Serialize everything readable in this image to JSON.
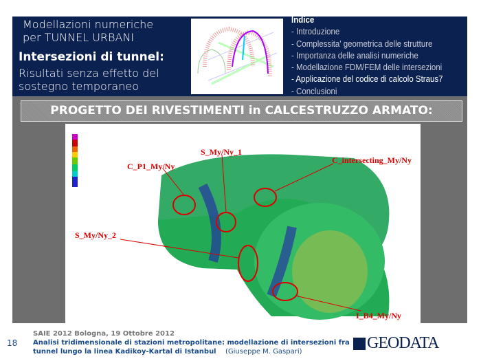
{
  "header": {
    "title_line1": "Modellazioni numeriche",
    "title_line2": "per TUNNEL URBANI",
    "subtitle": "Intersezioni di tunnel:",
    "desc_line1": "Risultati senza effetto del",
    "desc_line2": "sostegno temporaneo"
  },
  "index": {
    "heading": "Indice",
    "items": [
      "- Introduzione",
      "- Complessita' geometrica delle strutture",
      "- Importanza delle analisi numeriche",
      "- Modellazione FDM/FEM delle intersezioni",
      "- Applicazione del codice di calcolo Straus7",
      "- Conclusioni"
    ],
    "active_index": 4
  },
  "section_title": "PROGETTO DEI RIVESTIMENTI in CALCESTRUZZO ARMATO:",
  "figure": {
    "labels": [
      "S_My/Ny_1",
      "C_P1_My/Ny",
      "C_intersecting_My/Ny",
      "S_My/Ny_2",
      "I_B4_My/Ny"
    ]
  },
  "footer": {
    "page": "18",
    "event": "SAIE 2012 Bologna, 19 Ottobre 2012",
    "line1": "Analisi tridimensionale di stazioni metropolitane: modellazione di intersezioni fra",
    "line2": "tunnel lungo la linea Kadikoy-Kartal di Istanbul",
    "author": "(Giuseppe M. Gaspari)",
    "logo": "GEODATA"
  },
  "colors": {
    "band": "#0b2150",
    "gray": "#6e6e6e",
    "label": "#dd0000",
    "footer_text": "#1a4a8a"
  }
}
